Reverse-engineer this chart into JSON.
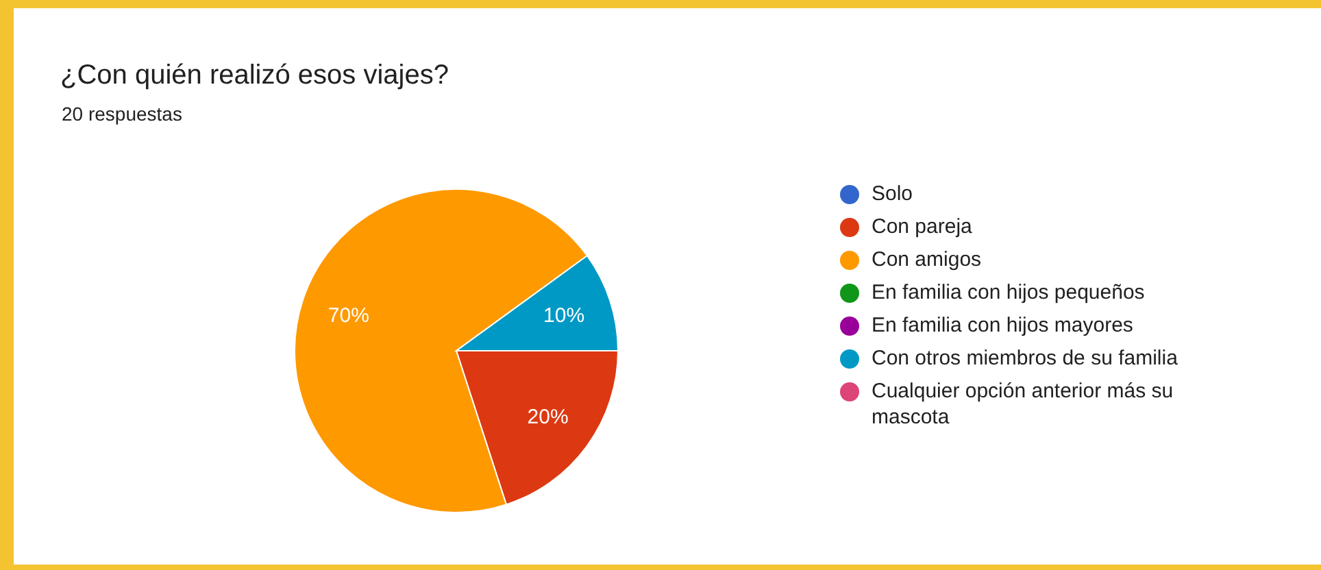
{
  "chart_data": {
    "type": "pie",
    "title": "¿Con quién realizó esos viajes?",
    "subtitle": "20 respuestas",
    "categories": [
      "Solo",
      "Con pareja",
      "Con amigos",
      "En familia con hijos pequeños",
      "En familia con hijos mayores",
      "Con otros miembros de su familia",
      "Cualquier opción anterior más su mascota"
    ],
    "values": [
      0,
      20,
      70,
      0,
      0,
      10,
      0
    ],
    "colors": [
      "#3366cc",
      "#dc3912",
      "#ff9900",
      "#109618",
      "#990099",
      "#0099c6",
      "#dd4477"
    ],
    "value_labels": [
      null,
      "20%",
      "70%",
      null,
      null,
      "10%",
      null
    ],
    "legend": "right"
  }
}
